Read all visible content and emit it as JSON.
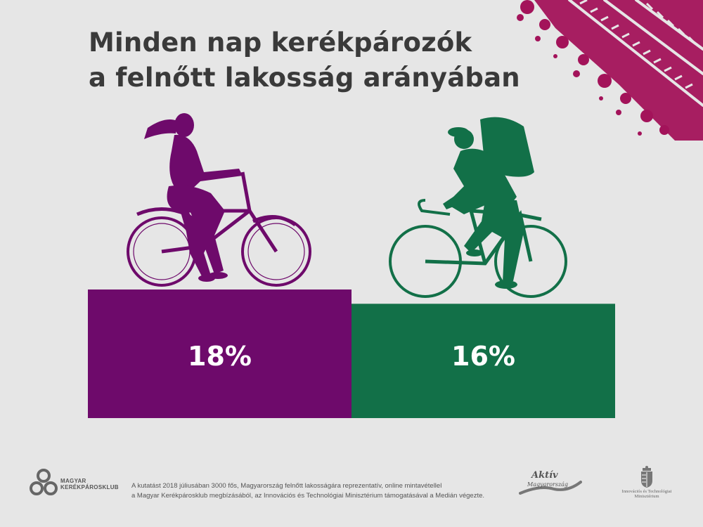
{
  "title": {
    "line1": "Minden nap kerékpározók",
    "line2": "a felnőtt lakosság arányában"
  },
  "colors": {
    "purple": "#6e0a6b",
    "green": "#127048",
    "tire": "#a3135a",
    "background": "#e6e6e6"
  },
  "chart_data": {
    "type": "bar",
    "categories": [
      "",
      ""
    ],
    "values": [
      18,
      16
    ],
    "labels": [
      "18%",
      "16%"
    ],
    "colors": [
      "#6e0a6b",
      "#127048"
    ],
    "ylim": [
      0,
      18
    ],
    "grid": false
  },
  "illustrations": {
    "left": "woman-cyclist-icon",
    "right": "backpacker-cyclist-icon"
  },
  "footer": {
    "logo_line1": "MAGYAR",
    "logo_line2": "KERÉKPÁROSKLUB",
    "note_line1": "A kutatást 2018 júliusában 3000 fős, Magyarország felnőtt lakosságára reprezentatív, online mintavétellel",
    "note_line2": "a Magyar Kerékpárosklub megbízásából, az Innovációs és Technológiai Minisztérium támogatásával a Medián végezte.",
    "aktiv_line1": "Aktív",
    "aktiv_line2": "Magyarország",
    "ministry_line1": "Innovációs és Technológiai",
    "ministry_line2": "Minisztérium"
  }
}
